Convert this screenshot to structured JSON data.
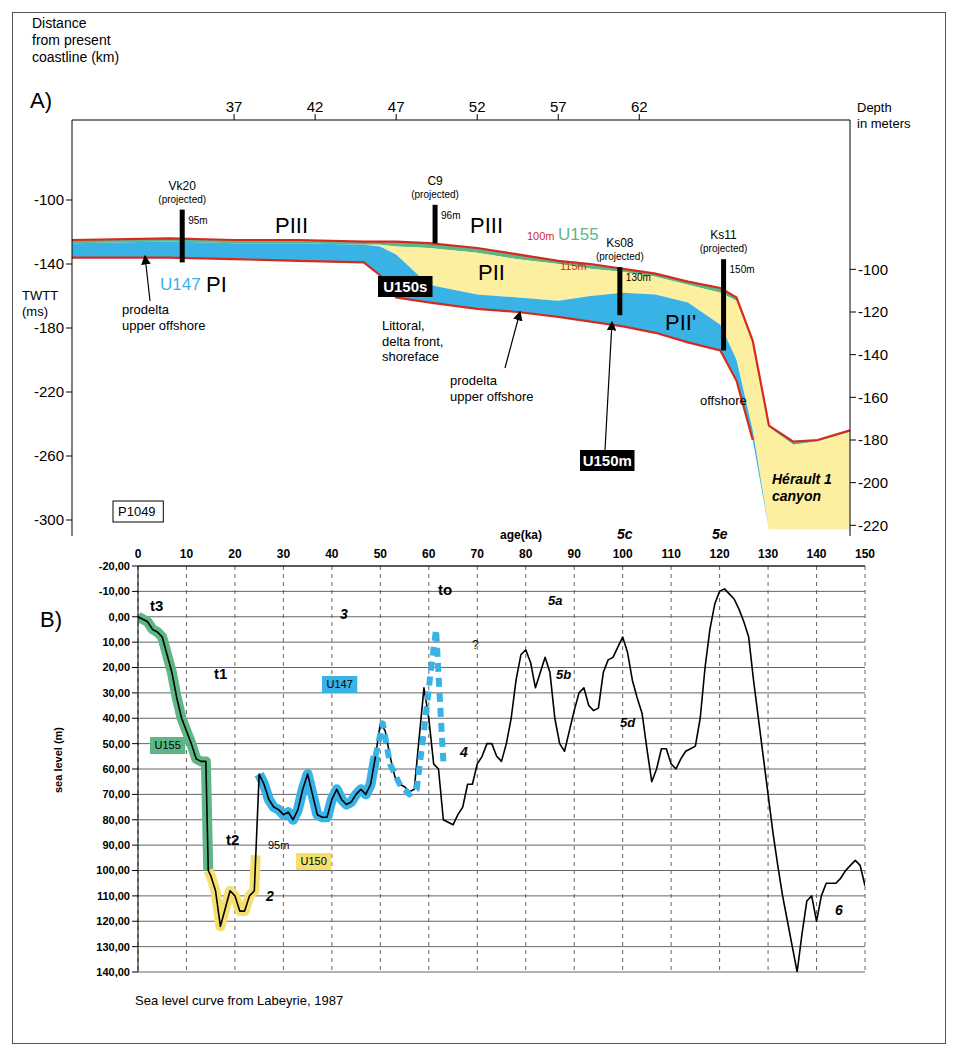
{
  "chart_data": [
    {
      "type": "area",
      "panel": "A)",
      "x_label": "Distance\nfrom present\ncoastline (km)",
      "y_label": "TWTT\n(ms)",
      "y2_label": "Depth\nin meters",
      "x": [
        27,
        33,
        37,
        41,
        45,
        46,
        47,
        49,
        52,
        54.5,
        57,
        59,
        61,
        63,
        65,
        67,
        68,
        69,
        70,
        71.5,
        73,
        75
      ],
      "xlim": [
        27,
        75
      ],
      "xticks": [
        37,
        42,
        47,
        52,
        57,
        62
      ],
      "ylim": [
        -310,
        -50
      ],
      "yticks": [
        -100,
        -140,
        -180,
        -220,
        -260,
        -300
      ],
      "y2lim": [
        -225,
        -30
      ],
      "y2ticks": [
        -100,
        -120,
        -140,
        -160,
        -180,
        -200,
        -220
      ],
      "grid": false,
      "series": [
        {
          "name": "U155",
          "color": "#5db784",
          "values": [
            [
              -127,
              -125
            ],
            [
              -126,
              -124
            ],
            [
              -127,
              -125
            ],
            [
              -127,
              -125
            ],
            [
              -128,
              -126
            ],
            [
              -128,
              -126
            ],
            [
              -129,
              -126
            ],
            [
              -130,
              -127
            ],
            [
              -133,
              -130
            ],
            [
              -137,
              -134
            ],
            [
              -140,
              -138
            ],
            [
              -143,
              -140
            ],
            [
              -145,
              -143
            ],
            [
              -148,
              -146
            ],
            [
              -153,
              -151
            ],
            [
              -158,
              -155
            ],
            [
              -163,
              -161
            ],
            [
              -189,
              -188
            ],
            [
              -242,
              -241
            ],
            [
              -253,
              -251
            ],
            [
              -251,
              -250
            ],
            [
              -245,
              -244
            ]
          ]
        },
        {
          "color": "#fcef9f",
          "values": [
            [
              -127,
              -127
            ],
            [
              -126,
              -126
            ],
            [
              -127,
              -127
            ],
            [
              -127,
              -127
            ],
            [
              -128,
              -128
            ],
            [
              -129,
              -128
            ],
            [
              -134,
              -129
            ],
            [
              -153,
              -130
            ],
            [
              -159,
              -133
            ],
            [
              -161,
              -137
            ],
            [
              -163,
              -140
            ],
            [
              -160,
              -143
            ],
            [
              -158,
              -145
            ],
            [
              -159,
              -148
            ],
            [
              -164,
              -153
            ],
            [
              -178,
              -158
            ],
            [
              -200,
              -163
            ],
            [
              -244,
              -189
            ],
            [
              -306,
              -242
            ],
            [
              -306,
              -253
            ],
            [
              -306,
              -251
            ],
            [
              -306,
              -245
            ]
          ]
        },
        {
          "name": "U147",
          "color": "#39b3e6",
          "values": [
            [
              -136,
              -127
            ],
            [
              -136,
              -126
            ],
            [
              -137,
              -127
            ],
            [
              -138,
              -127
            ],
            [
              -139,
              -128
            ],
            [
              -147,
              -129
            ],
            [
              -161,
              -134
            ],
            [
              -164,
              -153
            ],
            [
              -168,
              -159
            ],
            [
              -170,
              -161
            ],
            [
              -173,
              -163
            ],
            [
              -176,
              -160
            ],
            [
              -179,
              -158
            ],
            [
              -183,
              -159
            ],
            [
              -189,
              -164
            ],
            [
              -194,
              -178
            ],
            [
              -213,
              -200
            ],
            [
              -250,
              -244
            ],
            [
              -306,
              -306
            ],
            [
              -306,
              -306
            ],
            [
              -306,
              -306
            ],
            [
              -306,
              -306
            ]
          ]
        },
        {
          "type": "line",
          "color": "#d42a1f",
          "values": [
            -125,
            -124,
            -125,
            -125,
            -126,
            -126,
            -126,
            -127,
            -130,
            -134,
            -138,
            -140,
            -143,
            -146,
            -151,
            -155,
            -161,
            -188,
            -241,
            -251,
            -250,
            -244
          ]
        },
        {
          "type": "line",
          "color": "#d42a1f",
          "values": [
            -136,
            -136,
            -137,
            -138,
            -139,
            -147,
            -161,
            -164,
            -168,
            -170,
            -173,
            -176,
            -179,
            -183,
            -189,
            -194,
            -213,
            -250,
            null,
            null,
            null,
            null
          ]
        }
      ],
      "wells": [
        {
          "name": "Vk20",
          "note": "(projected)",
          "depth_label": "95m",
          "x": 33.8,
          "top": -106,
          "bottom": -139
        },
        {
          "name": "C9",
          "note": "(projected)",
          "depth_label": "96m",
          "x": 49.4,
          "top": -103,
          "bottom": -127
        },
        {
          "name": "Ks08",
          "note": "(projected)",
          "depth_label": "130m",
          "x": 60.8,
          "top": -142,
          "bottom": -172
        },
        {
          "name": "Ks11",
          "note": "(projected)",
          "depth_label": "150m",
          "x": 67.2,
          "top": -137,
          "bottom": -194
        }
      ],
      "annotations": [
        {
          "text": "PIII"
        },
        {
          "text": "PI"
        },
        {
          "text": "prodelta\nupper offshore"
        },
        {
          "text": "PIII"
        },
        {
          "text": "100m",
          "color": "#d42a1f"
        },
        {
          "text": "U150s"
        },
        {
          "text": "Littoral,\ndelta front,\nshoreface"
        },
        {
          "text": "PII"
        },
        {
          "text": "115m",
          "color": "#d42a1f"
        },
        {
          "text": "prodelta\nupper offshore"
        },
        {
          "text": "PII'"
        },
        {
          "text": "U150m"
        },
        {
          "text": "offshore"
        },
        {
          "text": "Hérault 1\ncanyon"
        },
        {
          "text": "P1049"
        }
      ]
    },
    {
      "type": "line",
      "panel": "B)",
      "x_label": "age(ka)",
      "y_label": "sea level (m)",
      "caption": "Sea level curve from Labeyrie, 1987",
      "xlim": [
        0,
        150
      ],
      "xticks": [
        0,
        10,
        20,
        30,
        40,
        50,
        60,
        70,
        80,
        90,
        100,
        110,
        120,
        130,
        140,
        150
      ],
      "ylim": [
        -20,
        140
      ],
      "yticks": [
        {
          "value": -20,
          "label": "-20,00"
        },
        {
          "value": -10,
          "label": "-10,00"
        },
        {
          "value": 0,
          "label": "0,00"
        },
        {
          "value": 10,
          "label": "10,00"
        },
        {
          "value": 20,
          "label": "20,00"
        },
        {
          "value": 30,
          "label": "30,00"
        },
        {
          "value": 40,
          "label": "40,00"
        },
        {
          "value": 50,
          "label": "50,00"
        },
        {
          "value": 60,
          "label": "60,00"
        },
        {
          "value": 70,
          "label": "70,00"
        },
        {
          "value": 80,
          "label": "80,00"
        },
        {
          "value": 90,
          "label": "90,00"
        },
        {
          "value": 100,
          "label": "100,00"
        },
        {
          "value": 110,
          "label": "110,00"
        },
        {
          "value": 120,
          "label": "120,00"
        },
        {
          "value": 130,
          "label": "130,00"
        },
        {
          "value": 140,
          "label": "140,00"
        }
      ],
      "grid": true,
      "series": [
        {
          "color": "#000000",
          "line_style": "solid",
          "x": [
            0,
            1,
            2,
            3,
            4,
            5,
            6,
            7,
            8,
            9,
            10,
            11,
            12,
            13,
            14,
            14.5,
            15,
            16,
            17,
            18,
            19,
            20,
            21,
            22,
            23,
            24,
            25,
            26,
            27,
            28,
            29,
            30,
            31,
            32,
            33,
            34,
            35,
            36,
            37,
            38,
            39,
            40,
            41,
            42,
            43,
            44,
            45,
            46,
            47,
            48,
            49,
            50,
            51,
            52,
            53,
            54,
            55,
            56,
            57,
            58,
            59,
            60,
            61,
            62,
            63,
            64,
            65,
            66,
            67,
            68,
            69,
            70,
            71,
            72,
            73,
            74,
            75,
            76,
            77,
            78,
            79,
            80,
            81,
            82,
            83,
            84,
            85,
            86,
            87,
            88,
            89,
            90,
            91,
            92,
            93,
            94,
            95,
            96,
            97,
            98,
            99,
            100,
            101,
            102,
            103,
            104,
            105,
            106,
            107,
            108,
            109,
            110,
            111,
            112,
            113,
            114,
            115,
            116,
            117,
            118,
            119,
            120,
            121,
            122,
            123,
            124,
            125,
            126,
            127,
            128,
            129,
            130,
            131,
            132,
            133,
            134,
            135,
            136,
            137,
            138,
            139,
            140,
            141,
            142,
            143,
            144,
            145,
            146,
            147,
            148,
            149,
            150
          ],
          "values": [
            0,
            1,
            2,
            5,
            6,
            8,
            15,
            22,
            32,
            40,
            45,
            50,
            56,
            57,
            57,
            100,
            102,
            108,
            122,
            115,
            108,
            110,
            116,
            116,
            110,
            108,
            62,
            66,
            72,
            75,
            76,
            78,
            77,
            80,
            76,
            68,
            62,
            70,
            78,
            79,
            79,
            72,
            68,
            72,
            74,
            73,
            70,
            68,
            70,
            66,
            55,
            42,
            45,
            55,
            63,
            66,
            67,
            69,
            68,
            48,
            28,
            40,
            58,
            60,
            80,
            81,
            82,
            78,
            75,
            66,
            66,
            58,
            55,
            50,
            50,
            55,
            57,
            50,
            40,
            25,
            15,
            13,
            18,
            28,
            22,
            16,
            22,
            40,
            50,
            53,
            45,
            37,
            30,
            28,
            35,
            37,
            36,
            22,
            17,
            16,
            12,
            8,
            14,
            25,
            32,
            38,
            52,
            65,
            60,
            52,
            52,
            58,
            60,
            56,
            53,
            52,
            51,
            40,
            20,
            5,
            -5,
            -10,
            -11,
            -9,
            -7,
            -3,
            2,
            8,
            25,
            40,
            55,
            70,
            85,
            98,
            110,
            120,
            130,
            140,
            125,
            112,
            110,
            120,
            110,
            105,
            105,
            105,
            103,
            100,
            98,
            96,
            98,
            106
          ]
        },
        {
          "name": "U155",
          "color": "#5db784",
          "line_style": "solid",
          "x": [
            0,
            1,
            2,
            3,
            4,
            5,
            6,
            7,
            8,
            9,
            10,
            11,
            12,
            13,
            14,
            14.5
          ],
          "values": [
            0,
            1,
            2,
            5,
            6,
            8,
            15,
            22,
            32,
            40,
            45,
            50,
            56,
            57,
            57,
            100
          ]
        },
        {
          "name": "U150",
          "color": "#f5df6e",
          "line_style": "solid",
          "x": [
            14.5,
            15,
            16,
            17,
            18,
            19,
            20,
            21,
            22,
            23,
            24,
            24.3
          ],
          "values": [
            100,
            102,
            108,
            122,
            115,
            108,
            110,
            116,
            116,
            110,
            108,
            94
          ]
        },
        {
          "name": "U147",
          "color": "#39b3e6",
          "line_style": "solid",
          "x": [
            25,
            26,
            27,
            28,
            29,
            30,
            31,
            32,
            33,
            34,
            35,
            36,
            37,
            38,
            39,
            40,
            41,
            42,
            43,
            44,
            45,
            46,
            47,
            48,
            49
          ],
          "values": [
            62,
            66,
            72,
            75,
            76,
            78,
            77,
            80,
            76,
            68,
            62,
            70,
            78,
            79,
            79,
            72,
            68,
            72,
            74,
            73,
            70,
            68,
            70,
            66,
            55
          ]
        },
        {
          "color": "#39b3e6",
          "line_style": "dashed",
          "x": [
            49,
            50.5,
            52,
            54,
            56,
            57.5,
            59,
            60.5,
            61.5,
            62.5,
            63
          ],
          "values": [
            55,
            42,
            58,
            66,
            70,
            68,
            45,
            20,
            5,
            40,
            57
          ]
        }
      ],
      "annotations": [
        {
          "text": "t3"
        },
        {
          "text": "t1"
        },
        {
          "text": "t2"
        },
        {
          "text": "to"
        },
        {
          "text": "95m"
        },
        {
          "text": "2"
        },
        {
          "text": "3"
        },
        {
          "text": "4"
        },
        {
          "text": "5a"
        },
        {
          "text": "5b"
        },
        {
          "text": "5c"
        },
        {
          "text": "5d"
        },
        {
          "text": "5e"
        },
        {
          "text": "6"
        },
        {
          "text": "?"
        }
      ]
    }
  ]
}
